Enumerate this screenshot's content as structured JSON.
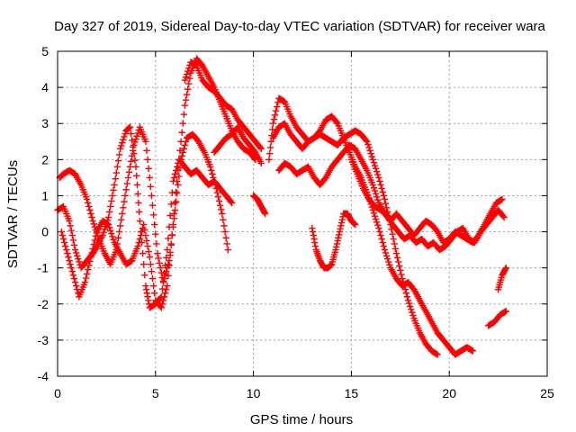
{
  "chart_data": {
    "type": "scatter",
    "title": "Day 327 of 2019, Sidereal Day-to-day VTEC variation (SDTVAR) for receiver wara",
    "xlabel": "GPS time / hours",
    "ylabel": "SDTVAR / TECUs",
    "xlim": [
      0,
      25
    ],
    "ylim": [
      -4,
      5
    ],
    "xticks": [
      0,
      5,
      10,
      15,
      20,
      25
    ],
    "yticks": [
      -4,
      -3,
      -2,
      -1,
      0,
      1,
      2,
      3,
      4,
      5
    ],
    "grid": true,
    "marker": "plus",
    "color": "#ff0000",
    "series": [
      {
        "name": "s1",
        "x": [
          0.0,
          0.3,
          0.6,
          0.9,
          1.2,
          1.5,
          1.8,
          2.0,
          2.3,
          2.6,
          2.9,
          3.2,
          3.5,
          3.7,
          4.0,
          4.2,
          4.5,
          4.7,
          5.0,
          5.3,
          5.6,
          5.9,
          6.2,
          6.5,
          6.8,
          7.1,
          7.4,
          7.7,
          8.0,
          8.3,
          8.6,
          8.9
        ],
        "y": [
          0.6,
          0.7,
          0.3,
          -0.5,
          -1.0,
          -0.8,
          -0.6,
          -0.4,
          -0.1,
          0.4,
          1.3,
          2.3,
          2.8,
          2.9,
          1.8,
          0.3,
          -1.5,
          -2.1,
          -2.0,
          -1.8,
          -0.5,
          1.4,
          2.0,
          1.8,
          1.6,
          1.7,
          1.5,
          1.3,
          1.4,
          1.2,
          1.0,
          0.8
        ]
      },
      {
        "name": "s2",
        "x": [
          0.1,
          0.3,
          0.6,
          0.9,
          1.2,
          1.5,
          1.8,
          2.1,
          2.4,
          2.7,
          3.0,
          3.3,
          3.6,
          3.9,
          4.2,
          4.5,
          4.8,
          5.1,
          5.4,
          5.7,
          6.0,
          6.3,
          6.6,
          6.9,
          7.2,
          7.5,
          7.8,
          8.1,
          8.4,
          8.7
        ],
        "y": [
          1.5,
          1.6,
          1.7,
          1.6,
          1.3,
          0.9,
          0.3,
          -0.2,
          -0.6,
          -0.9,
          -0.5,
          0.5,
          1.5,
          2.4,
          2.9,
          2.5,
          1.0,
          -0.6,
          -1.4,
          -0.8,
          0.6,
          2.0,
          2.6,
          2.7,
          2.5,
          2.2,
          1.8,
          1.2,
          0.5,
          -0.5
        ]
      },
      {
        "name": "s3",
        "x": [
          0.2,
          0.5,
          0.8,
          1.1,
          1.4,
          1.7,
          2.0,
          2.3,
          2.6,
          2.9,
          3.2,
          3.5,
          3.8,
          4.1,
          4.4,
          4.7,
          5.0,
          5.3,
          5.6,
          5.9,
          6.2,
          6.5,
          6.8,
          7.1,
          7.4,
          7.7,
          8.0,
          8.3,
          8.6,
          8.9,
          9.2,
          9.5,
          9.8,
          10.1
        ],
        "y": [
          0.0,
          -0.6,
          -1.2,
          -1.8,
          -1.4,
          -0.7,
          0.0,
          0.3,
          0.2,
          -0.3,
          -0.6,
          -0.9,
          -0.8,
          -0.4,
          0.2,
          -0.7,
          -1.9,
          -2.1,
          -1.5,
          0.2,
          2.0,
          3.5,
          4.4,
          4.8,
          4.6,
          4.3,
          4.0,
          3.6,
          3.2,
          2.8,
          2.5,
          2.3,
          2.2,
          2.0
        ]
      },
      {
        "name": "s4",
        "x": [
          6.5,
          6.8,
          7.1,
          7.4,
          7.7,
          8.0,
          8.3,
          8.6,
          8.9,
          9.2,
          9.5,
          9.8,
          10.1,
          10.4
        ],
        "y": [
          4.2,
          4.7,
          4.6,
          4.2,
          4.0,
          3.9,
          3.7,
          3.5,
          3.4,
          3.1,
          2.9,
          2.7,
          2.5,
          2.3
        ]
      },
      {
        "name": "s5",
        "x": [
          8.0,
          8.3,
          8.6,
          8.9,
          9.2,
          9.5,
          9.8,
          10.1,
          10.4
        ],
        "y": [
          2.2,
          2.4,
          2.6,
          2.7,
          2.9,
          2.6,
          2.4,
          2.2,
          1.9
        ]
      },
      {
        "name": "s6",
        "x": [
          10.0,
          10.2,
          10.4,
          10.6
        ],
        "y": [
          1.0,
          0.9,
          0.7,
          0.5
        ]
      },
      {
        "name": "s7",
        "x": [
          10.8,
          11.0,
          11.3,
          11.6,
          11.9,
          12.2,
          12.5,
          12.8,
          13.1,
          13.4,
          13.7,
          14.0,
          14.3,
          14.6,
          14.9,
          15.2,
          15.5,
          15.8,
          16.1,
          16.4,
          16.7,
          17.0,
          17.3,
          17.6,
          17.9,
          18.2,
          18.5,
          18.8,
          19.1,
          19.4,
          19.7,
          20.0,
          20.3,
          20.6,
          20.9,
          21.2
        ],
        "y": [
          2.0,
          3.0,
          3.7,
          3.6,
          3.2,
          2.9,
          2.7,
          2.5,
          2.6,
          2.8,
          3.1,
          3.2,
          3.0,
          2.6,
          2.2,
          1.8,
          1.5,
          1.1,
          0.6,
          0.1,
          -0.5,
          -1.0,
          -1.3,
          -1.5,
          -1.4,
          -1.6,
          -1.9,
          -2.2,
          -2.5,
          -2.8,
          -3.0,
          -3.2,
          -3.4,
          -3.3,
          -3.2,
          -3.3
        ]
      },
      {
        "name": "s8",
        "x": [
          11.0,
          11.3,
          11.6,
          11.9,
          12.2,
          12.5,
          12.8,
          13.1,
          13.4,
          13.7,
          14.0,
          14.3,
          14.6,
          14.9,
          15.2,
          15.5,
          15.8,
          16.1,
          16.4,
          16.7,
          17.0,
          17.3,
          17.6,
          17.9,
          18.2,
          18.5,
          18.8,
          19.1,
          19.4
        ],
        "y": [
          2.6,
          2.9,
          3.0,
          2.7,
          2.5,
          2.3,
          2.5,
          2.6,
          2.7,
          2.6,
          2.5,
          2.4,
          2.6,
          2.7,
          2.8,
          2.7,
          2.5,
          2.0,
          1.5,
          0.9,
          0.2,
          -0.6,
          -1.3,
          -1.9,
          -2.4,
          -2.8,
          -3.1,
          -3.3,
          -3.4
        ]
      },
      {
        "name": "s9",
        "x": [
          11.3,
          11.6,
          11.9,
          12.2,
          12.5,
          12.8,
          13.1,
          13.4,
          13.7,
          14.0,
          14.3,
          14.6,
          14.9,
          15.2,
          15.5,
          15.8,
          16.1,
          16.4,
          16.7,
          17.0,
          17.3,
          17.6,
          17.9,
          18.2,
          18.5,
          18.8,
          19.1,
          19.4,
          19.7,
          20.0,
          20.3,
          20.6,
          20.9,
          21.2,
          21.5,
          21.8,
          22.1,
          22.4,
          22.7
        ],
        "y": [
          1.7,
          1.9,
          1.8,
          1.6,
          1.7,
          1.8,
          1.5,
          1.3,
          1.5,
          1.8,
          2.0,
          2.2,
          2.4,
          2.3,
          2.0,
          1.7,
          1.3,
          0.8,
          0.5,
          0.3,
          0.5,
          0.3,
          0.1,
          -0.1,
          0.1,
          0.3,
          0.2,
          0.0,
          -0.3,
          -0.2,
          0.0,
          -0.1,
          -0.2,
          -0.3,
          -0.1,
          0.2,
          0.5,
          0.8,
          0.9
        ]
      },
      {
        "name": "s10",
        "x": [
          13.0,
          13.2,
          13.4,
          13.6,
          13.8,
          14.0,
          14.2,
          14.4,
          14.6,
          14.8,
          15.0,
          15.2
        ],
        "y": [
          0.1,
          -0.5,
          -0.8,
          -1.0,
          -1.0,
          -0.9,
          -0.5,
          0.0,
          0.5,
          0.5,
          0.3,
          0.2
        ]
      },
      {
        "name": "s11",
        "x": [
          15.0,
          15.3,
          15.6,
          15.9,
          16.2,
          16.5,
          16.8,
          17.1,
          17.4,
          17.7,
          18.0,
          18.3,
          18.6,
          18.9,
          19.2,
          19.5,
          19.8,
          20.1,
          20.4,
          20.7,
          21.0,
          21.3,
          21.6,
          21.9,
          22.2,
          22.5,
          22.8
        ],
        "y": [
          2.0,
          1.6,
          1.2,
          0.9,
          0.7,
          0.6,
          0.5,
          0.2,
          0.0,
          -0.2,
          -0.1,
          -0.3,
          -0.2,
          -0.4,
          -0.3,
          -0.5,
          -0.4,
          -0.2,
          0.0,
          0.1,
          -0.2,
          -0.3,
          0.0,
          0.2,
          0.4,
          0.6,
          0.4
        ]
      },
      {
        "name": "s12",
        "x": [
          22.0,
          22.3,
          22.6,
          22.9
        ],
        "y": [
          -2.6,
          -2.5,
          -2.3,
          -2.2
        ]
      },
      {
        "name": "s13",
        "x": [
          22.5,
          22.7,
          22.9
        ],
        "y": [
          -1.6,
          -1.2,
          -1.0
        ]
      }
    ]
  }
}
